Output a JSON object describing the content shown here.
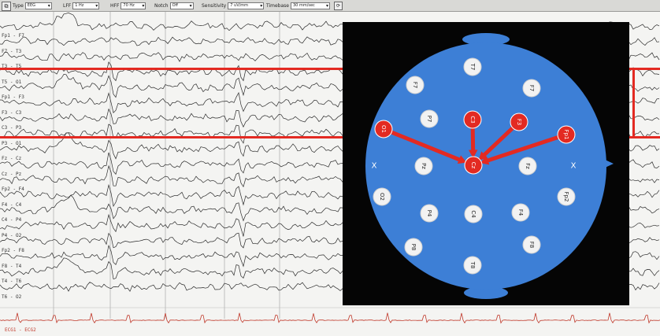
{
  "toolbar": {
    "type_label": "Type",
    "type_value": "EEG",
    "lff_label": "LFF",
    "lff_value": "1 Hz",
    "hff_label": "HFF",
    "hff_value": "70 Hz",
    "notch_label": "Notch",
    "notch_value": "Off",
    "sensitivity_label": "Sensitivity",
    "sensitivity_value": "7 uV/mm",
    "timebase_label": "Timebase",
    "timebase_value": "30 mm/sec"
  },
  "channels": [
    "Fp1 - F7",
    "F7 - T3",
    "T3 - T5",
    "T5 - O1",
    "Fp1 - F3",
    "F3 - C3",
    "C3 - P3",
    "P3 - O1",
    "Fz - Cz",
    "Cz - Pz",
    "Fp2 - F4",
    "F4 - C4",
    "C4 - P4",
    "P4 - O2",
    "Fp2 - F8",
    "F8 - T4",
    "T4 - T6",
    "T6 - O2"
  ],
  "ecg_label": "ECG1 - ECG2",
  "colors": {
    "scalp": "#3d7fd6",
    "electrode": "#f2f2f2",
    "highlight": "#e32a22",
    "trace": "#2a2a2a",
    "ecg": "#c0392b"
  },
  "headmap": {
    "ground_marks": [
      "X",
      "X"
    ],
    "electrodes": [
      {
        "id": "t7",
        "label": "T7",
        "highlighted": false
      },
      {
        "id": "f7",
        "label": "F7",
        "highlighted": false
      },
      {
        "id": "f7b",
        "label": "F7",
        "highlighted": false
      },
      {
        "id": "p7",
        "label": "P7",
        "highlighted": false
      },
      {
        "id": "c3",
        "label": "C3",
        "highlighted": true
      },
      {
        "id": "f3",
        "label": "F3",
        "highlighted": true
      },
      {
        "id": "o1",
        "label": "O1",
        "highlighted": true
      },
      {
        "id": "fp1",
        "label": "Fp1",
        "highlighted": true
      },
      {
        "id": "pz",
        "label": "Pz",
        "highlighted": false
      },
      {
        "id": "cz",
        "label": "Cz",
        "highlighted": true
      },
      {
        "id": "fz",
        "label": "Fz",
        "highlighted": false
      },
      {
        "id": "o2",
        "label": "O2",
        "highlighted": false
      },
      {
        "id": "fp2",
        "label": "Fp2",
        "highlighted": false
      },
      {
        "id": "p4",
        "label": "P4",
        "highlighted": false
      },
      {
        "id": "c4",
        "label": "C4",
        "highlighted": false
      },
      {
        "id": "f4",
        "label": "F4",
        "highlighted": false
      },
      {
        "id": "p8",
        "label": "P8",
        "highlighted": false
      },
      {
        "id": "f8",
        "label": "F8",
        "highlighted": false
      },
      {
        "id": "t8",
        "label": "T8",
        "highlighted": false
      }
    ]
  }
}
